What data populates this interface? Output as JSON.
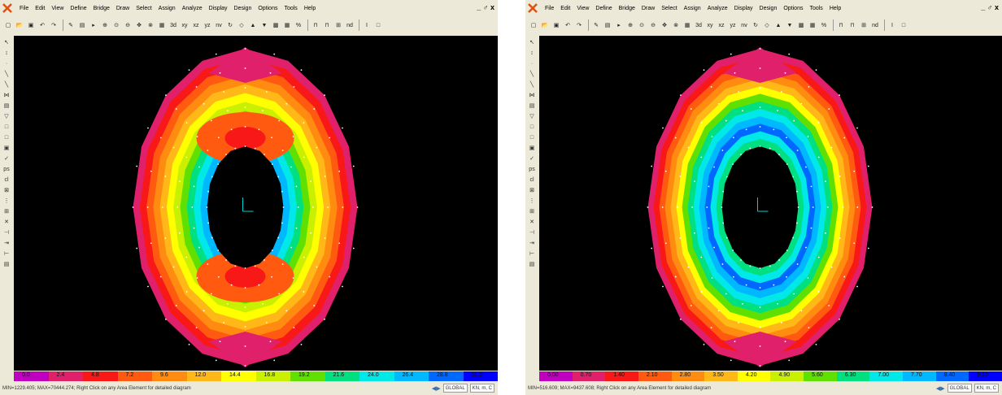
{
  "menu": [
    "File",
    "Edit",
    "View",
    "Define",
    "Bridge",
    "Draw",
    "Select",
    "Assign",
    "Analyze",
    "Display",
    "Design",
    "Options",
    "Tools",
    "Help"
  ],
  "window_controls": "_ ♂ x",
  "toolbar": {
    "view_3d": "3d",
    "view_xy": "xy",
    "view_xz": "xz",
    "view_yz": "yz",
    "view_nv": "nv",
    "percent": "%",
    "nd": "nd",
    "section_cut": "I",
    "box": "□"
  },
  "left_window": {
    "legend": [
      "0.0",
      "2.4",
      "4.8",
      "7.2",
      "9.6",
      "12.0",
      "14.4",
      "16.8",
      "19.2",
      "21.6",
      "24.0",
      "26.4",
      "28.8",
      "31.2"
    ],
    "status": "MIN=1229.405; MAX=70444.274; Right Click on any Area Element for detailed diagram",
    "coord_system": "GLOBAL",
    "units": "KN, m, C"
  },
  "right_window": {
    "legend": [
      "0.00",
      "0.70",
      "1.40",
      "2.10",
      "2.80",
      "3.50",
      "4.20",
      "4.90",
      "5.60",
      "6.30",
      "7.00",
      "7.70",
      "8.40",
      "9.10"
    ],
    "status": "MIN=516.609; MAX=9437.608; Right Click on any Area Element for detailed diagram",
    "coord_system": "GLOBAL",
    "units": "KN, m, C"
  },
  "colors": {
    "legend": [
      "#c000c0",
      "#e0206a",
      "#f81818",
      "#ff5a10",
      "#ff8c10",
      "#ffb818",
      "#ffff00",
      "#c8f000",
      "#60e000",
      "#00e080",
      "#00e8e8",
      "#00b8ff",
      "#0068ff",
      "#0000ff"
    ],
    "viewport_bg": "#000000",
    "axis": "#00d0d0"
  }
}
